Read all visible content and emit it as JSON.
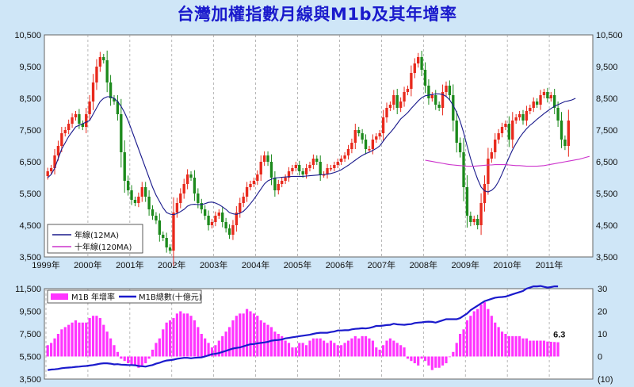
{
  "title": "台灣加權指數月線與M1b及其年增率",
  "colors": {
    "background": "#cfe6f7",
    "plot_bg": "#ffffff",
    "title": "#1a1acc",
    "candle_up": "#e8291c",
    "candle_down": "#1c8a1c",
    "ma12": "#1a1a8c",
    "ma120": "#cc33cc",
    "m1b_yoy": "#ff33ff",
    "m1b_total": "#1a1acc",
    "last_value": "#cc2222"
  },
  "legend": {
    "ma12": "年線(12MA)",
    "ma120": "十年線(120MA)",
    "yoy": "M1B 年增率",
    "total": "M1B總數(十億元)"
  },
  "last_label": "6.3",
  "chart_data": [
    {
      "type": "candlestick",
      "title": "台灣加權指數月線",
      "y_ticks": [
        "3,500",
        "4,500",
        "5,500",
        "6,500",
        "7,500",
        "8,500",
        "9,500",
        "10,500"
      ],
      "ylim": [
        3500,
        10500
      ],
      "x_ticks": [
        "1999年",
        "2000年",
        "2001年",
        "2002年",
        "2003年",
        "2004年",
        "2005年",
        "2006年",
        "2007年",
        "2008年",
        "2009年",
        "2010年",
        "2011年"
      ],
      "x_start": "1999-01",
      "grid": "vertical-dashed",
      "close": [
        6200,
        6300,
        6700,
        7000,
        7400,
        7500,
        7700,
        7900,
        8000,
        7700,
        7600,
        8000,
        8400,
        9000,
        9500,
        9800,
        9700,
        9000,
        8500,
        8400,
        8000,
        6800,
        5900,
        5600,
        5300,
        5200,
        5400,
        5700,
        5400,
        5000,
        4800,
        4650,
        4200,
        4100,
        3800,
        3700,
        4900,
        5200,
        5500,
        5800,
        6100,
        6000,
        5500,
        5200,
        5000,
        4800,
        4500,
        4600,
        4800,
        4900,
        4600,
        4400,
        4200,
        4500,
        4900,
        5200,
        5400,
        5700,
        5800,
        5900,
        6100,
        6500,
        6700,
        6500,
        6000,
        5600,
        5800,
        5900,
        6000,
        6200,
        6300,
        6400,
        6200,
        6100,
        6300,
        6400,
        6600,
        6500,
        6100,
        6100,
        6300,
        6300,
        6400,
        6500,
        6600,
        6700,
        6900,
        7100,
        7500,
        7400,
        7200,
        6900,
        6900,
        7200,
        7300,
        7400,
        7900,
        8200,
        8300,
        8600,
        8200,
        8400,
        8700,
        8800,
        9300,
        9600,
        9800,
        9400,
        8900,
        8500,
        8600,
        8300,
        8200,
        8700,
        8900,
        8600,
        7800,
        7100,
        6800,
        5700,
        4800,
        4600,
        4700,
        4500,
        5200,
        5800,
        6600,
        6800,
        7200,
        7400,
        7600,
        7700,
        7200,
        7800,
        7900,
        8000,
        7800,
        8100,
        8200,
        8400,
        8300,
        8600,
        8700,
        8500,
        8600,
        8200,
        7800,
        7200,
        7000,
        7800
      ],
      "ma12": [
        6000,
        6100,
        6300,
        6600,
        6900,
        7100,
        7300,
        7450,
        7600,
        7650,
        7700,
        7750,
        7800,
        8000,
        8200,
        8400,
        8500,
        8550,
        8550,
        8500,
        8400,
        8250,
        8050,
        7800,
        7500,
        7200,
        6900,
        6600,
        6300,
        6000,
        5700,
        5450,
        5250,
        5050,
        4900,
        4850,
        4830,
        4870,
        4930,
        5000,
        5100,
        5150,
        5160,
        5150,
        5150,
        5180,
        5220,
        5230,
        5200,
        5150,
        5080,
        5000,
        4900,
        4860,
        4840,
        4880,
        4940,
        5050,
        5180,
        5320,
        5480,
        5640,
        5800,
        5900,
        5950,
        5990,
        6000,
        6010,
        6020,
        6030,
        6040,
        6040,
        6040,
        6040,
        6050,
        6060,
        6070,
        6080,
        6090,
        6100,
        6110,
        6130,
        6160,
        6200,
        6250,
        6320,
        6390,
        6470,
        6550,
        6630,
        6700,
        6760,
        6800,
        6860,
        6920,
        7000,
        7150,
        7300,
        7420,
        7550,
        7700,
        7850,
        7950,
        8050,
        8180,
        8300,
        8420,
        8520,
        8580,
        8600,
        8620,
        8640,
        8640,
        8620,
        8560,
        8450,
        8280,
        8060,
        7780,
        7420,
        7000,
        6600,
        6250,
        5950,
        5700,
        5580,
        5550,
        5600,
        5700,
        5880,
        6120,
        6380,
        6640,
        6880,
        7080,
        7260,
        7410,
        7540,
        7650,
        7740,
        7840,
        7930,
        8020,
        8100,
        8180,
        8250,
        8300,
        8350,
        8400,
        8420,
        8450,
        8500
      ],
      "ma120_start_index": 108,
      "ma120": [
        6550,
        6530,
        6510,
        6490,
        6470,
        6450,
        6430,
        6410,
        6400,
        6390,
        6380,
        6370,
        6360,
        6360,
        6360,
        6370,
        6380,
        6390,
        6400,
        6400,
        6410,
        6410,
        6410,
        6410,
        6400,
        6390,
        6380,
        6380,
        6370,
        6360,
        6360,
        6360,
        6360,
        6370,
        6380,
        6400,
        6420,
        6440,
        6460,
        6480,
        6500,
        6520,
        6540,
        6560,
        6580,
        6610,
        6640,
        6670
      ]
    },
    {
      "type": "bar+line",
      "y_ticks_left": [
        "3,500",
        "5,500",
        "7,500",
        "9,500",
        "11,500"
      ],
      "y_ticks_right": [
        "(10)",
        "0",
        "10",
        "20",
        "30"
      ],
      "ylim_right": [
        -10,
        30
      ],
      "m1b_yoy": [
        5,
        6,
        8,
        10,
        12,
        13,
        14,
        15,
        16,
        15,
        15,
        15,
        17,
        18,
        18,
        17,
        14,
        11,
        8,
        5,
        2,
        -1,
        -2,
        -3,
        -4,
        -4,
        -5,
        -4,
        -3,
        -1,
        3,
        6,
        8,
        12,
        15,
        16,
        17,
        19,
        20,
        19,
        19,
        18,
        16,
        13,
        10,
        8,
        6,
        4,
        5,
        7,
        9,
        11,
        13,
        16,
        18,
        19,
        19,
        21,
        20,
        19,
        18,
        16,
        15,
        14,
        13,
        11,
        10,
        9,
        7,
        6,
        4,
        4,
        6,
        6,
        5,
        7,
        8,
        8,
        8,
        7,
        6,
        7,
        6,
        5,
        5,
        6,
        7,
        8,
        9,
        8,
        9,
        9,
        8,
        7,
        4,
        3,
        5,
        7,
        8,
        7,
        6,
        5,
        4,
        -1,
        -2,
        -3,
        -4,
        -1,
        -2,
        -4,
        -6,
        -5,
        -5,
        -4,
        -3,
        0,
        2,
        6,
        10,
        12,
        16,
        18,
        20,
        21,
        23,
        24,
        21,
        18,
        15,
        13,
        11,
        10,
        9,
        9,
        9,
        9,
        8,
        8,
        7,
        7,
        7,
        7,
        7,
        6.6,
        6.5,
        6.4,
        6.3
      ],
      "m1b_total": [
        -6,
        -5.8,
        -5.7,
        -5.5,
        -5.2,
        -5,
        -4.9,
        -4.8,
        -4.6,
        -4.5,
        -4.3,
        -4.2,
        -4,
        -3.8,
        -3.5,
        -3.2,
        -3,
        -3,
        -3.2,
        -3.5,
        -3.4,
        -3.6,
        -3.7,
        -3.8,
        -3.8,
        -3.9,
        -4.2,
        -4.3,
        -4.5,
        -4.1,
        -3.8,
        -3.2,
        -2.8,
        -2.2,
        -1.8,
        -1.6,
        -1.4,
        -1,
        -0.8,
        -0.6,
        -0.6,
        -0.8,
        -0.6,
        -0.5,
        -0.4,
        0,
        0.5,
        1,
        1.2,
        1.5,
        2,
        2.5,
        3,
        3.5,
        3.8,
        4,
        4.5,
        5,
        5.4,
        5.5,
        5.8,
        6,
        6.2,
        6.5,
        7,
        7.2,
        7.3,
        7.5,
        8,
        8.2,
        8.5,
        8.7,
        9,
        9.2,
        9.4,
        9.6,
        10,
        10.3,
        10.5,
        10.5,
        10.5,
        10.8,
        11,
        11.5,
        11.5,
        11.6,
        11.6,
        12,
        12.2,
        12.3,
        12.5,
        12.4,
        12.6,
        13,
        13.5,
        13.5,
        13.7,
        13.9,
        14,
        14.5,
        14.2,
        14.1,
        14,
        14.2,
        14.3,
        14.8,
        15,
        15.1,
        15.3,
        15.4,
        15.3,
        15,
        15.5,
        16,
        16.5,
        16.5,
        16.5,
        16.5,
        17,
        18,
        19,
        20.5,
        21.5,
        22.5,
        23.5,
        24.5,
        25,
        25.5,
        26,
        26.2,
        26.3,
        26.5,
        27,
        27.5,
        28,
        28.5,
        29,
        30,
        30.5,
        31,
        31,
        31.2,
        30.8,
        30.5,
        30.7,
        31,
        31
      ]
    }
  ]
}
